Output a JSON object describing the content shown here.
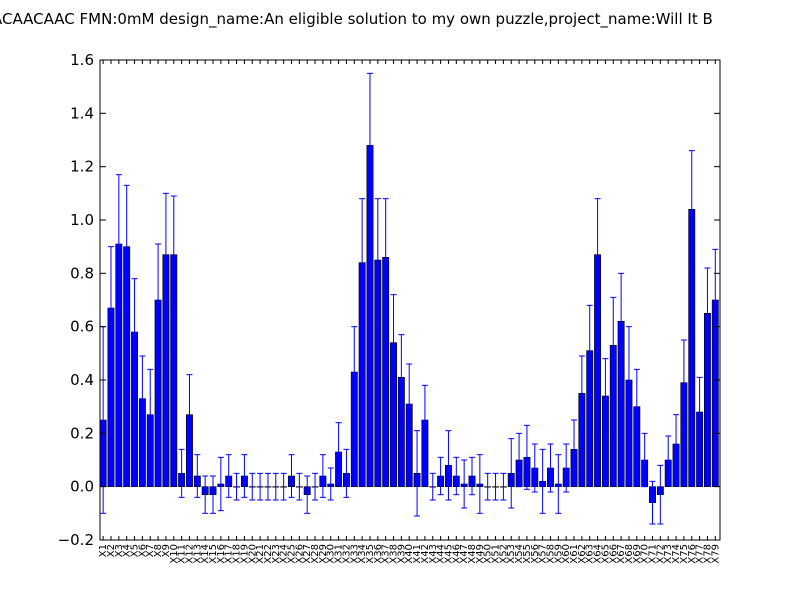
{
  "chart_data": {
    "type": "bar",
    "title": "ACAACAAC  FMN:0mM  design_name:An eligible solution to my own puzzle,project_name:Will It B",
    "xlabel": "",
    "ylabel": "",
    "ylim": [
      -0.2,
      1.6
    ],
    "yticks": [
      -0.2,
      0.0,
      0.2,
      0.4,
      0.6,
      0.8,
      1.0,
      1.2,
      1.4,
      1.6
    ],
    "ytick_labels": [
      "−0.2",
      "0.0",
      "0.2",
      "0.4",
      "0.6",
      "0.8",
      "1.0",
      "1.2",
      "1.4",
      "1.6"
    ],
    "grid": false,
    "colors": {
      "bar": "#0000ff",
      "edge": "#000000",
      "error": "#0000ff"
    },
    "categories": [
      "X1",
      "X2",
      "X3",
      "X4",
      "X5",
      "X6",
      "X7",
      "X8",
      "X9",
      "X10",
      "X11",
      "X12",
      "X13",
      "X14",
      "X15",
      "X16",
      "X17",
      "X18",
      "X19",
      "X20",
      "X21",
      "X22",
      "X23",
      "X24",
      "X25",
      "X26",
      "X27",
      "X28",
      "X29",
      "X30",
      "X31",
      "X32",
      "X33",
      "X34",
      "X35",
      "X36",
      "X37",
      "X38",
      "X39",
      "X40",
      "X41",
      "X42",
      "X43",
      "X44",
      "X45",
      "X46",
      "X47",
      "X48",
      "X49",
      "X50",
      "X51",
      "X52",
      "X53",
      "X54",
      "X55",
      "X56",
      "X57",
      "X58",
      "X59",
      "X60",
      "X61",
      "X62",
      "X63",
      "X64",
      "X65",
      "X66",
      "X67",
      "X68",
      "X69",
      "X70",
      "X71",
      "X72",
      "X73",
      "X74",
      "X75",
      "X76",
      "X77",
      "X78",
      "X79"
    ],
    "values": [
      0.25,
      0.67,
      0.91,
      0.9,
      0.58,
      0.33,
      0.27,
      0.7,
      0.87,
      0.87,
      0.05,
      0.27,
      0.04,
      -0.03,
      -0.03,
      0.01,
      0.04,
      0.0,
      0.04,
      0.0,
      0.0,
      0.0,
      0.0,
      0.0,
      0.04,
      0.0,
      -0.03,
      0.0,
      0.04,
      0.01,
      0.13,
      0.05,
      0.43,
      0.84,
      1.28,
      0.85,
      0.86,
      0.54,
      0.41,
      0.31,
      0.05,
      0.25,
      0.0,
      0.04,
      0.08,
      0.04,
      0.01,
      0.04,
      0.01,
      0.0,
      0.0,
      0.0,
      0.05,
      0.1,
      0.11,
      0.07,
      0.02,
      0.07,
      0.01,
      0.07,
      0.14,
      0.35,
      0.51,
      0.87,
      0.34,
      0.53,
      0.62,
      0.4,
      0.3,
      0.1,
      -0.06,
      -0.03,
      0.1,
      0.16,
      0.39,
      1.04,
      0.28,
      0.65,
      0.7
    ],
    "errors": [
      0.35,
      0.23,
      0.26,
      0.23,
      0.2,
      0.16,
      0.17,
      0.21,
      0.23,
      0.22,
      0.09,
      0.15,
      0.08,
      0.07,
      0.07,
      0.1,
      0.08,
      0.05,
      0.08,
      0.05,
      0.05,
      0.05,
      0.05,
      0.05,
      0.08,
      0.05,
      0.07,
      0.05,
      0.08,
      0.06,
      0.11,
      0.09,
      0.17,
      0.24,
      0.27,
      0.23,
      0.22,
      0.18,
      0.16,
      0.15,
      0.16,
      0.13,
      0.05,
      0.07,
      0.13,
      0.07,
      0.09,
      0.07,
      0.11,
      0.05,
      0.05,
      0.05,
      0.13,
      0.1,
      0.12,
      0.09,
      0.12,
      0.09,
      0.11,
      0.09,
      0.11,
      0.14,
      0.17,
      0.21,
      0.14,
      0.18,
      0.18,
      0.2,
      0.14,
      0.1,
      0.08,
      0.11,
      0.09,
      0.11,
      0.16,
      0.22,
      0.13,
      0.17,
      0.19
    ]
  }
}
